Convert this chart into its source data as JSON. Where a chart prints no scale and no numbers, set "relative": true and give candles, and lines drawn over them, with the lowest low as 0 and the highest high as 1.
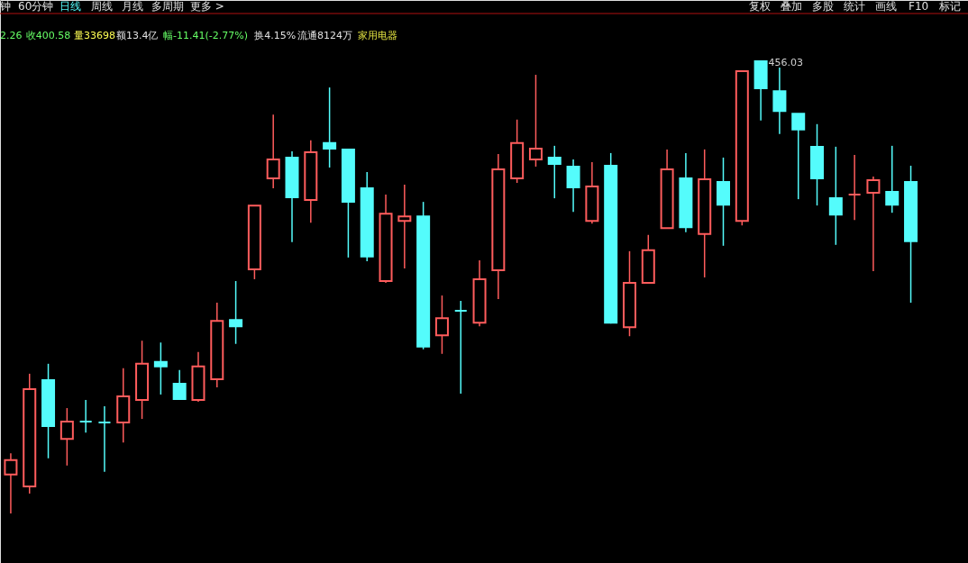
{
  "chart_data": {
    "type": "candlestick",
    "relative": true,
    "categories": [
      null,
      null,
      null,
      null,
      null,
      null,
      null,
      null,
      null,
      null,
      null,
      null,
      null,
      null,
      null,
      null,
      null,
      null,
      null,
      null,
      null,
      null,
      null,
      null,
      null,
      null,
      null,
      null,
      null,
      null,
      null,
      null,
      null,
      null,
      null,
      null,
      null,
      null,
      null,
      null,
      null,
      null,
      null,
      null,
      null,
      null,
      null,
      null,
      null
    ],
    "ohlc": [
      [
        0.086,
        0.133,
        0,
        0.118
      ],
      [
        0.06,
        0.309,
        0.044,
        0.275
      ],
      [
        0.295,
        0.331,
        0.122,
        0.193
      ],
      [
        0.165,
        0.233,
        0.106,
        0.203
      ],
      [
        0.203,
        0.251,
        0.179,
        0.203
      ],
      [
        0.201,
        0.237,
        0.092,
        0.201
      ],
      [
        0.201,
        0.321,
        0.157,
        0.259
      ],
      [
        0.251,
        0.382,
        0.209,
        0.331
      ],
      [
        0.335,
        0.378,
        0.263,
        0.325
      ],
      [
        0.287,
        0.317,
        0.251,
        0.253
      ],
      [
        0.251,
        0.357,
        0.247,
        0.325
      ],
      [
        0.297,
        0.466,
        0.279,
        0.426
      ],
      [
        0.428,
        0.514,
        0.375,
        0.414
      ],
      [
        0.54,
        0.681,
        0.518,
        0.681
      ],
      [
        0.741,
        0.882,
        0.719,
        0.783
      ],
      [
        0.787,
        0.801,
        0.6,
        0.699
      ],
      [
        0.693,
        0.825,
        0.643,
        0.799
      ],
      [
        0.819,
        0.942,
        0.765,
        0.807
      ],
      [
        0.805,
        0.805,
        0.566,
        0.689
      ],
      [
        0.719,
        0.755,
        0.558,
        0.568
      ],
      [
        0.514,
        0.705,
        0.51,
        0.663
      ],
      [
        0.647,
        0.727,
        0.542,
        0.657
      ],
      [
        0.657,
        0.689,
        0.363,
        0.369
      ],
      [
        0.394,
        0.482,
        0.353,
        0.432
      ],
      [
        0.448,
        0.47,
        0.265,
        0.448
      ],
      [
        0.422,
        0.56,
        0.414,
        0.518
      ],
      [
        0.538,
        0.795,
        0.474,
        0.761
      ],
      [
        0.741,
        0.871,
        0.731,
        0.819
      ],
      [
        0.783,
        0.97,
        0.767,
        0.807
      ],
      [
        0.787,
        0.813,
        0.697,
        0.773
      ],
      [
        0.767,
        0.783,
        0.667,
        0.721
      ],
      [
        0.647,
        0.777,
        0.641,
        0.723
      ],
      [
        0.769,
        0.797,
        0.42,
        0.422
      ],
      [
        0.412,
        0.58,
        0.392,
        0.51
      ],
      [
        0.51,
        0.616,
        0.508,
        0.582
      ],
      [
        0.631,
        0.805,
        0.631,
        0.761
      ],
      [
        0.741,
        0.797,
        0.622,
        0.633
      ],
      [
        0.618,
        0.805,
        0.522,
        0.739
      ],
      [
        0.733,
        0.787,
        0.592,
        0.683
      ],
      [
        0.647,
        0.978,
        0.637,
        0.978
      ],
      [
        1,
        1,
        0.869,
        0.94
      ],
      [
        0.934,
        0.986,
        0.839,
        0.89
      ],
      [
        0.884,
        0.884,
        0.695,
        0.849
      ],
      [
        0.811,
        0.861,
        0.681,
        0.741
      ],
      [
        0.697,
        0.811,
        0.594,
        0.661
      ],
      [
        0.705,
        0.793,
        0.649,
        0.705
      ],
      [
        0.709,
        0.745,
        0.536,
        0.737
      ],
      [
        0.711,
        0.813,
        0.665,
        0.683
      ],
      [
        0.733,
        0.769,
        0.466,
        0.602
      ]
    ],
    "colors": [
      "#ff5c5c",
      "#ff5c5c",
      "#54fcfc",
      "#ff5c5c",
      "#54fcfc",
      "#54fcfc",
      "#ff5c5c",
      "#ff5c5c",
      "#54fcfc",
      "#54fcfc",
      "#ff5c5c",
      "#ff5c5c",
      "#54fcfc",
      "#ff5c5c",
      "#ff5c5c",
      "#54fcfc",
      "#ff5c5c",
      "#54fcfc",
      "#54fcfc",
      "#54fcfc",
      "#ff5c5c",
      "#ff5c5c",
      "#54fcfc",
      "#ff5c5c",
      "#54fcfc",
      "#ff5c5c",
      "#ff5c5c",
      "#ff5c5c",
      "#ff5c5c",
      "#54fcfc",
      "#54fcfc",
      "#ff5c5c",
      "#54fcfc",
      "#ff5c5c",
      "#ff5c5c",
      "#ff5c5c",
      "#54fcfc",
      "#ff5c5c",
      "#54fcfc",
      "#ff5c5c",
      "#54fcfc",
      "#54fcfc",
      "#54fcfc",
      "#54fcfc",
      "#54fcfc",
      "#ff5c5c",
      "#ff5c5c",
      "#54fcfc",
      "#54fcfc"
    ],
    "annotations": [
      "钟",
      "60分钟",
      "日线",
      "周线",
      "月线",
      "多周期",
      "更多 >",
      "复权",
      "叠加",
      "多股",
      "统计",
      "画线",
      "F10",
      "标记",
      "2.26",
      "收400.58",
      "量33698",
      "额13.4亿",
      "幅-11.41(-2.77%)",
      "换4.15%",
      "流通8124万",
      "家用电器",
      "456.03"
    ]
  }
}
